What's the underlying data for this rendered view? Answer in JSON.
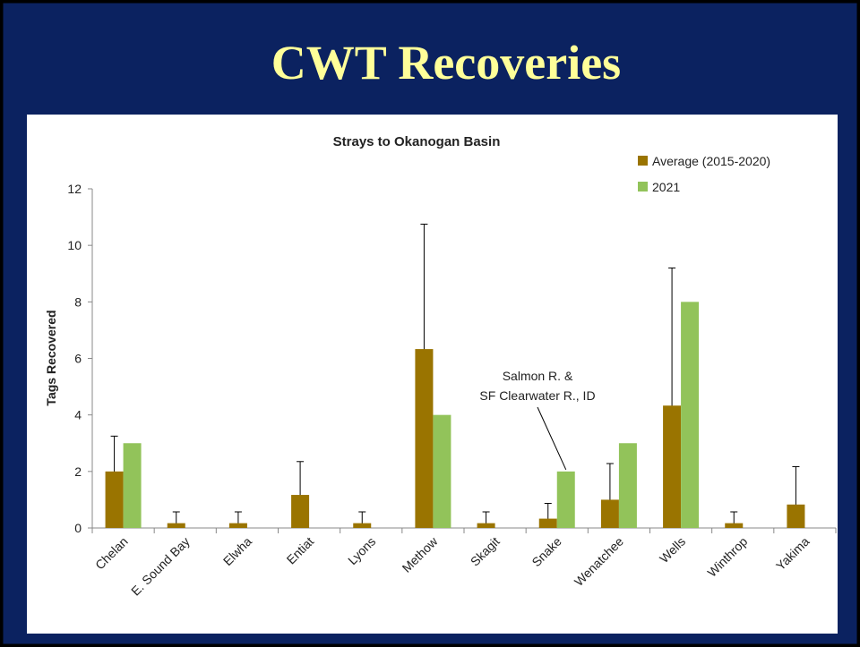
{
  "slide_title": "CWT Recoveries",
  "chart_data": {
    "type": "bar",
    "title": "Strays to Okanogan Basin",
    "y_label": "Tags Recovered",
    "categories": [
      "Chelan",
      "E. Sound Bay",
      "Elwha",
      "Entiat",
      "Lyons",
      "Methow",
      "Skagit",
      "Snake",
      "Wenatchee",
      "Wells",
      "Winthrop",
      "Yakima"
    ],
    "series": [
      {
        "name": "Average (2015-2020)",
        "color": "#9a7400",
        "values": [
          2.0,
          0.17,
          0.17,
          1.17,
          0.17,
          6.33,
          0.17,
          0.33,
          1.0,
          4.33,
          0.17,
          0.83
        ],
        "errors": [
          1.25,
          0.4,
          0.4,
          1.18,
          0.4,
          4.42,
          0.4,
          0.54,
          1.28,
          4.87,
          0.4,
          1.34
        ]
      },
      {
        "name": "2021",
        "color": "#92c35a",
        "values": [
          3,
          0,
          0,
          0,
          0,
          4,
          0,
          2,
          3,
          8,
          0,
          0
        ]
      }
    ],
    "ylim": [
      0,
      12
    ],
    "yticks": [
      0,
      2,
      4,
      6,
      8,
      10,
      12
    ],
    "grid": false,
    "legend": "top-right",
    "annotation": {
      "lines": [
        "Salmon R. &",
        "SF Clearwater R., ID"
      ],
      "category": 7
    }
  }
}
